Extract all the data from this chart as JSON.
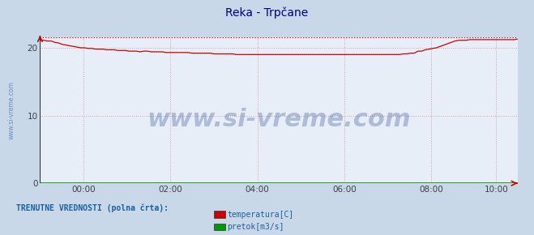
{
  "title": "Reka - Trpčane",
  "title_color": "#000080",
  "bg_color": "#c8d8e8",
  "plot_bg_color": "#e8eef8",
  "grid_color": "#d0a0a0",
  "xlabel": "",
  "ylabel": "",
  "xlim": [
    0,
    132
  ],
  "ylim": [
    0,
    21.5
  ],
  "yticks": [
    0,
    10,
    20
  ],
  "xtick_labels": [
    "00:00",
    "02:00",
    "04:00",
    "06:00",
    "08:00",
    "10:00"
  ],
  "xtick_positions": [
    12,
    36,
    60,
    84,
    108,
    126
  ],
  "temp_color": "#cc0000",
  "flow_color": "#009900",
  "watermark": "www.si-vreme.com",
  "watermark_color": "#1a3a8a",
  "watermark_alpha": 0.28,
  "watermark_fontsize": 22,
  "legend_text": "TRENUTNE VREDNOSTI (polna črta):",
  "legend_color": "#1a5fa0",
  "legend_items": [
    "temperatura[C]",
    "pretok[m3/s]"
  ],
  "legend_item_colors": [
    "#cc0000",
    "#009900"
  ],
  "left_label": "www.si-vreme.com",
  "left_label_color": "#5080b0",
  "temp_data": [
    21.1,
    21.1,
    21.0,
    21.0,
    20.8,
    20.7,
    20.5,
    20.4,
    20.3,
    20.2,
    20.1,
    20.0,
    20.0,
    19.9,
    19.9,
    19.8,
    19.8,
    19.8,
    19.7,
    19.7,
    19.7,
    19.6,
    19.6,
    19.6,
    19.5,
    19.5,
    19.5,
    19.4,
    19.5,
    19.5,
    19.4,
    19.4,
    19.4,
    19.4,
    19.3,
    19.3,
    19.3,
    19.3,
    19.3,
    19.3,
    19.3,
    19.2,
    19.2,
    19.2,
    19.2,
    19.2,
    19.2,
    19.1,
    19.1,
    19.1,
    19.1,
    19.1,
    19.1,
    19.0,
    19.0,
    19.0,
    19.0,
    19.0,
    19.0,
    19.0,
    19.0,
    19.0,
    19.0,
    19.0,
    19.0,
    19.0,
    19.0,
    19.0,
    19.0,
    19.0,
    19.0,
    19.0,
    19.0,
    19.0,
    19.0,
    19.0,
    19.0,
    19.0,
    19.0,
    19.0,
    19.0,
    19.0,
    19.0,
    19.0,
    19.0,
    19.0,
    19.0,
    19.0,
    19.0,
    19.0,
    19.0,
    19.0,
    19.0,
    19.0,
    19.0,
    19.0,
    19.0,
    19.0,
    19.1,
    19.1,
    19.2,
    19.2,
    19.5,
    19.5,
    19.7,
    19.8,
    19.9,
    20.0,
    20.2,
    20.4,
    20.6,
    20.8,
    21.0,
    21.1,
    21.1,
    21.1,
    21.2,
    21.2,
    21.2,
    21.2,
    21.2,
    21.2,
    21.2,
    21.2,
    21.2,
    21.2,
    21.2,
    21.2,
    21.2,
    21.3
  ],
  "temp_max": 21.5,
  "flow_data_value": 0.02
}
